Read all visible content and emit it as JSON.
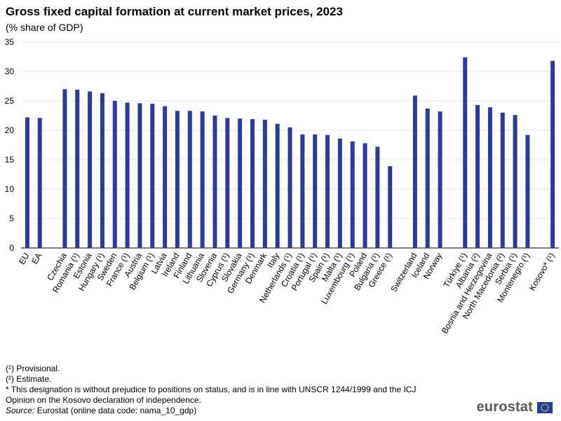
{
  "header": {
    "title": "Gross fixed capital formation at current market prices, 2023",
    "subtitle": "(% share of GDP)"
  },
  "chart_data": {
    "type": "bar",
    "categories": [
      "EU",
      "EA",
      "",
      "Czechia",
      "Romania (¹)",
      "Estonia",
      "Hungary (¹)",
      "Sweden",
      "France (¹)",
      "Austria",
      "Belgium (¹)",
      "Latvia",
      "Ireland",
      "Finland",
      "Lithuania",
      "Slovenia",
      "Cyprus (¹)",
      "Slovakia",
      "Germany (¹)",
      "Denmark",
      "Italy",
      "Netherlands (¹)",
      "Croatia (¹)",
      "Portugal (¹)",
      "Spain (¹)",
      "Malta (¹)",
      "Luxembourg (¹)",
      "Poland",
      "Bulgaria (¹)",
      "Greece (¹)",
      "",
      "Switzerland",
      "Iceland",
      "Norway",
      "",
      "Türkiye (¹)",
      "Albania (²)",
      "Bosnia and Herzegovina",
      "North Macedonia (²)",
      "Serbia (¹)",
      "Montenegro (¹)",
      "",
      "Kosovo* (¹)"
    ],
    "values": [
      22.2,
      22.1,
      null,
      27.0,
      26.9,
      26.6,
      26.3,
      25.0,
      24.7,
      24.6,
      24.5,
      24.1,
      23.3,
      23.3,
      23.2,
      22.5,
      22.1,
      22.0,
      21.9,
      21.8,
      21.1,
      20.5,
      19.3,
      19.3,
      19.2,
      18.6,
      18.1,
      17.8,
      17.2,
      13.9,
      null,
      25.9,
      23.7,
      23.2,
      null,
      32.4,
      24.3,
      23.9,
      23.0,
      22.6,
      19.2,
      null,
      31.8
    ],
    "ylim": [
      0,
      35
    ],
    "yticks": [
      0,
      5,
      10,
      15,
      20,
      25,
      30,
      35
    ],
    "grid": true,
    "bar_color": "#2a3b9c"
  },
  "footnotes": {
    "provisional": "(¹) Provisional.",
    "estimate": "(²) Estimate.",
    "kosovo_line1": "* This designation is without prejudice to positions on status, and is in line with UNSCR 1244/1999 and the ICJ",
    "kosovo_line2": "Opinion on the Kosovo declaration of independence.",
    "source_label": "Source:",
    "source_text": " Eurostat (online data code: nama_10_gdp)"
  },
  "logo": {
    "text": "eurostat"
  }
}
